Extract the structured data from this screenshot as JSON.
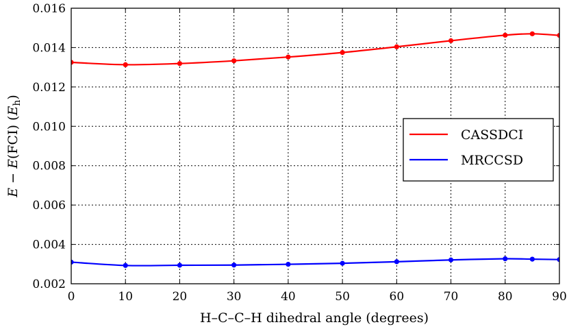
{
  "chart_data": {
    "type": "line",
    "xlabel": "H–C–C–H dihedral angle (degrees)",
    "ylabel_parts": [
      "E",
      " − ",
      "E",
      "(FCI) (",
      "E",
      "h",
      ")"
    ],
    "xlim": [
      0,
      90
    ],
    "ylim": [
      0.002,
      0.016
    ],
    "xticks": [
      0,
      10,
      20,
      30,
      40,
      50,
      60,
      70,
      80,
      90
    ],
    "yticks": [
      0.002,
      0.004,
      0.006,
      0.008,
      0.01,
      0.012,
      0.014,
      0.016
    ],
    "xtick_labels": [
      "0",
      "10",
      "20",
      "30",
      "40",
      "50",
      "60",
      "70",
      "80",
      "90"
    ],
    "ytick_labels": [
      "0.002",
      "0.004",
      "0.006",
      "0.008",
      "0.010",
      "0.012",
      "0.014",
      "0.016"
    ],
    "grid": true,
    "legend_position": "center-right",
    "series": [
      {
        "name": "CASSDCI",
        "color": "#ff0000",
        "x": [
          0,
          10,
          20,
          30,
          40,
          50,
          60,
          70,
          80,
          85,
          90
        ],
        "y": [
          0.01325,
          0.01313,
          0.01319,
          0.01333,
          0.01352,
          0.01375,
          0.01404,
          0.01435,
          0.01463,
          0.0147,
          0.01462
        ]
      },
      {
        "name": "MRCCSD",
        "color": "#0000ff",
        "x": [
          0,
          10,
          20,
          30,
          40,
          50,
          60,
          70,
          80,
          85,
          90
        ],
        "y": [
          0.0031,
          0.00293,
          0.00294,
          0.00295,
          0.00299,
          0.00304,
          0.00312,
          0.00321,
          0.00327,
          0.00325,
          0.00323
        ]
      }
    ]
  }
}
